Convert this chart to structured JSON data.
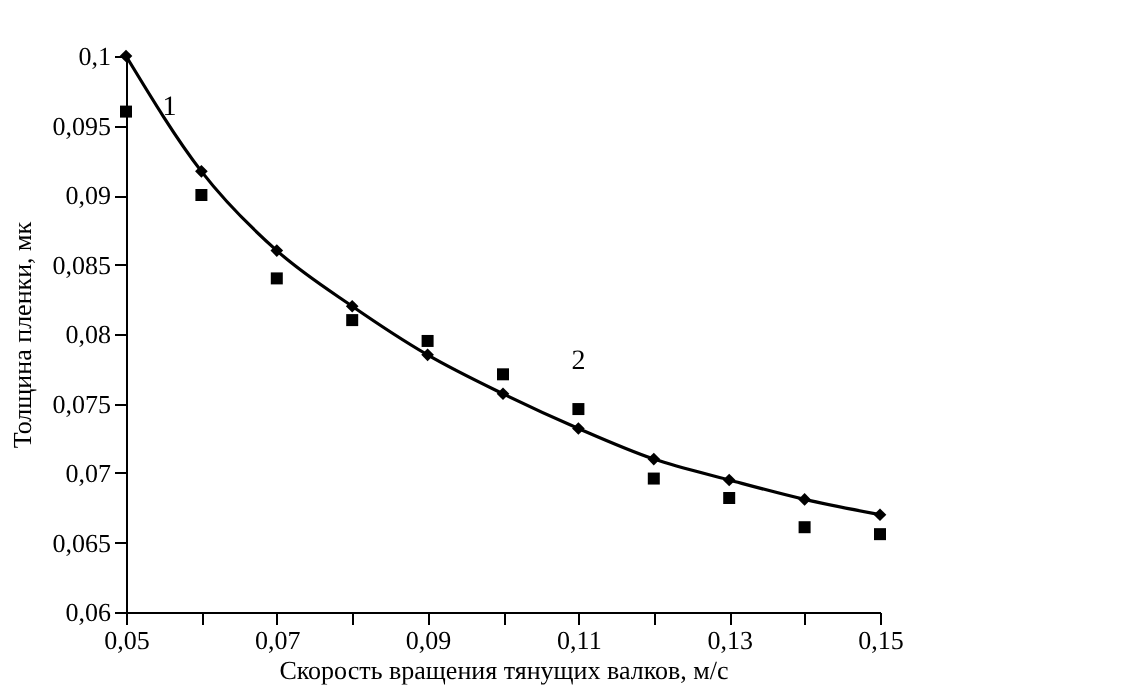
{
  "chart_data": {
    "type": "line",
    "xlabel": "Скорость вращения тянущих валков, м/с",
    "ylabel": "Толщина пленки, мк",
    "x": [
      0.05,
      0.06,
      0.07,
      0.08,
      0.09,
      0.1,
      0.11,
      0.12,
      0.13,
      0.14,
      0.15
    ],
    "series": [
      {
        "name": "1",
        "color": "#000000",
        "marker": "diamond",
        "line_style": "solid",
        "values": [
          0.1,
          0.0917,
          0.086,
          0.082,
          0.0785,
          0.0757,
          0.0732,
          0.071,
          0.0695,
          0.0681,
          0.067
        ]
      },
      {
        "name": "2",
        "type": "scatter",
        "color": "#000000",
        "marker": "square",
        "values": [
          0.096,
          0.09,
          0.084,
          0.081,
          0.0795,
          0.0771,
          0.0746,
          0.0696,
          0.0682,
          0.0661,
          0.0656
        ]
      }
    ],
    "xlim": [
      0.05,
      0.15
    ],
    "xticks": [
      {
        "value": 0.05,
        "label": "0,05"
      },
      {
        "value": 0.06,
        "label": null
      },
      {
        "value": 0.07,
        "label": "0,07"
      },
      {
        "value": 0.08,
        "label": null
      },
      {
        "value": 0.09,
        "label": "0,09"
      },
      {
        "value": 0.1,
        "label": null
      },
      {
        "value": 0.11,
        "label": "0,11"
      },
      {
        "value": 0.12,
        "label": null
      },
      {
        "value": 0.13,
        "label": "0,13"
      },
      {
        "value": 0.14,
        "label": null
      },
      {
        "value": 0.15,
        "label": "0,15"
      }
    ],
    "ylim": [
      0.06,
      0.1
    ],
    "yticks": [
      {
        "value": 0.06,
        "label": "0,06"
      },
      {
        "value": 0.065,
        "label": "0,065"
      },
      {
        "value": 0.07,
        "label": "0,07"
      },
      {
        "value": 0.075,
        "label": "0,075"
      },
      {
        "value": 0.08,
        "label": "0,08"
      },
      {
        "value": 0.085,
        "label": "0,085"
      },
      {
        "value": 0.09,
        "label": "0,09"
      },
      {
        "value": 0.095,
        "label": "0,095"
      },
      {
        "value": 0.1,
        "label": "0,1"
      }
    ],
    "grid": false
  }
}
